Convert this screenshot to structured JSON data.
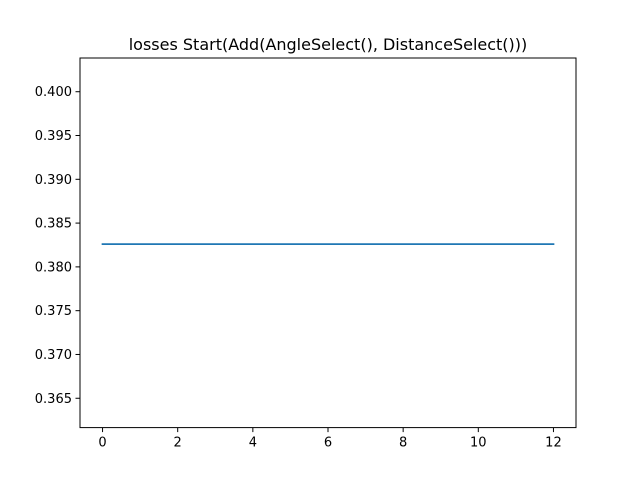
{
  "chart_data": {
    "type": "line",
    "title": "losses Start(Add(AngleSelect(), DistanceSelect()))",
    "xlabel": "",
    "ylabel": "",
    "xlim": [
      -0.6,
      12.6
    ],
    "ylim": [
      0.36165,
      0.40385
    ],
    "xticks": [
      0,
      2,
      4,
      6,
      8,
      10,
      12
    ],
    "xtick_labels": [
      "0",
      "2",
      "4",
      "6",
      "8",
      "10",
      "12"
    ],
    "yticks": [
      0.365,
      0.37,
      0.375,
      0.38,
      0.385,
      0.39,
      0.395,
      0.4
    ],
    "ytick_labels": [
      "0.365",
      "0.370",
      "0.375",
      "0.380",
      "0.385",
      "0.390",
      "0.395",
      "0.400"
    ],
    "grid": false,
    "series": [
      {
        "color": "#1f77b4",
        "x": [
          0,
          1,
          2,
          3,
          4,
          5,
          6,
          7,
          8,
          9,
          10,
          11,
          12
        ],
        "y": [
          0.3826,
          0.3826,
          0.3826,
          0.3826,
          0.3826,
          0.3826,
          0.3826,
          0.3826,
          0.3826,
          0.3826,
          0.3826,
          0.3826,
          0.3826
        ]
      }
    ]
  }
}
